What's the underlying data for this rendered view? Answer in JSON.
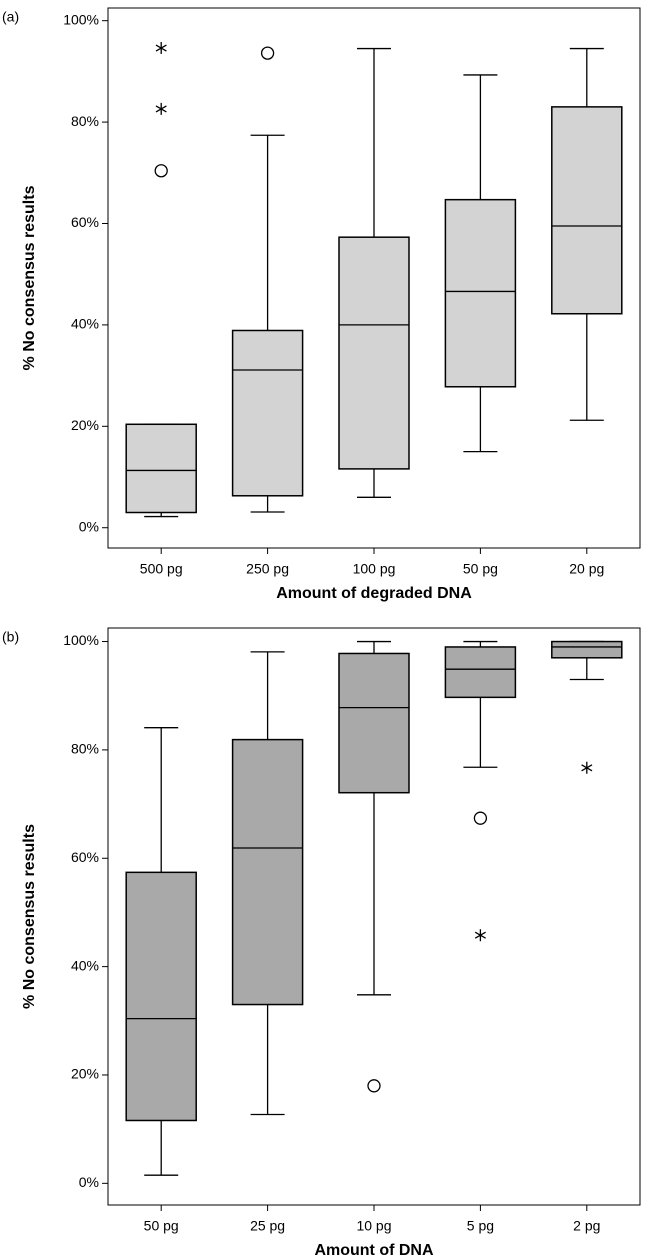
{
  "chart_data": [
    {
      "type": "box",
      "panel_label": "(a)",
      "xlabel": "Amount of degraded DNA",
      "ylabel": "% No consensus results",
      "categories": [
        "500 pg",
        "250 pg",
        "100 pg",
        "50 pg",
        "20 pg"
      ],
      "color": "#d3d3d3",
      "whisker_low": [
        2.2,
        3.1,
        6,
        15,
        21.2
      ],
      "q1": [
        3,
        6.3,
        11.6,
        27.8,
        42.2
      ],
      "median": [
        11.3,
        31.1,
        40,
        46.6,
        59.5
      ],
      "q3": [
        20.4,
        38.9,
        57.3,
        64.7,
        83
      ],
      "whisker_high": [
        20.4,
        77.4,
        94.5,
        89.3,
        94.5
      ],
      "outliers": [
        [
          {
            "value": 94.6,
            "marker": "star"
          },
          {
            "value": 82.6,
            "marker": "star"
          },
          {
            "value": 70.4,
            "marker": "circle"
          }
        ],
        [
          {
            "value": 93.6,
            "marker": "circle"
          }
        ],
        [],
        [],
        []
      ],
      "ylim": [
        -4,
        102.5
      ],
      "yticks": [
        {
          "value": 0,
          "label": "0%"
        },
        {
          "value": 20,
          "label": "20%"
        },
        {
          "value": 40,
          "label": "40%"
        },
        {
          "value": 60,
          "label": "60%"
        },
        {
          "value": 80,
          "label": "80%"
        },
        {
          "value": 100,
          "label": "100%"
        }
      ]
    },
    {
      "type": "box",
      "panel_label": "(b)",
      "xlabel": "Amount of DNA",
      "ylabel": "% No consensus results",
      "categories": [
        "50 pg",
        "25 pg",
        "10 pg",
        "5 pg",
        "2 pg"
      ],
      "color": "#a9a9a9",
      "whisker_low": [
        1.5,
        12.7,
        34.8,
        76.8,
        93
      ],
      "q1": [
        11.6,
        33,
        72.1,
        89.7,
        97
      ],
      "median": [
        30.4,
        61.9,
        87.8,
        94.9,
        99
      ],
      "q3": [
        57.4,
        81.9,
        97.8,
        99,
        100
      ],
      "whisker_high": [
        84.1,
        98.1,
        100,
        100,
        100
      ],
      "outliers": [
        [],
        [],
        [
          {
            "value": 18,
            "marker": "circle"
          }
        ],
        [
          {
            "value": 67.4,
            "marker": "circle"
          },
          {
            "value": 45.8,
            "marker": "star"
          }
        ],
        [
          {
            "value": 76.7,
            "marker": "star"
          }
        ]
      ],
      "ylim": [
        -4,
        102.5
      ],
      "yticks": [
        {
          "value": 0,
          "label": "0%"
        },
        {
          "value": 20,
          "label": "20%"
        },
        {
          "value": 40,
          "label": "40%"
        },
        {
          "value": 60,
          "label": "60%"
        },
        {
          "value": 80,
          "label": "80%"
        },
        {
          "value": 100,
          "label": "100%"
        }
      ]
    }
  ]
}
